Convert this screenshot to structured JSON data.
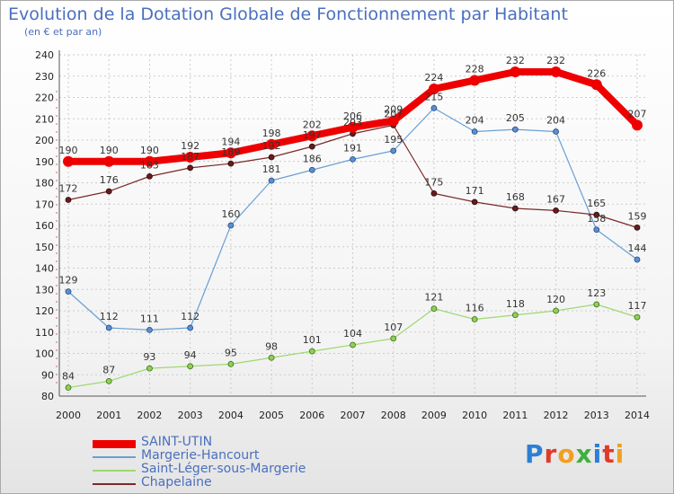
{
  "title": "Evolution de la Dotation Globale de Fonctionnement par Habitant",
  "subtitle": "(en € et par an)",
  "logo_text": "Proxiti",
  "chart_data": {
    "type": "line",
    "title": "Evolution de la Dotation Globale de Fonctionnement par Habitant",
    "subtitle": "(en € et par an)",
    "xlabel": "",
    "ylabel": "",
    "x": [
      "2000",
      "2001",
      "2002",
      "2003",
      "2004",
      "2005",
      "2006",
      "2007",
      "2008",
      "2009",
      "2010",
      "2011",
      "2012",
      "2013",
      "2014"
    ],
    "ylim": [
      80,
      240
    ],
    "yticks": [
      80,
      90,
      100,
      110,
      120,
      130,
      140,
      150,
      160,
      170,
      180,
      190,
      200,
      210,
      220,
      230,
      240
    ],
    "legend_position": "bottom-left",
    "series": [
      {
        "name": "SAINT-UTIN",
        "color": "#ee0000",
        "values": [
          190,
          190,
          190,
          192,
          194,
          198,
          202,
          206,
          209,
          224,
          228,
          232,
          232,
          226,
          207
        ]
      },
      {
        "name": "Margerie-Hancourt",
        "color": "#6a9fd4",
        "values": [
          129,
          112,
          111,
          112,
          160,
          181,
          186,
          191,
          195,
          215,
          204,
          205,
          204,
          158,
          144
        ]
      },
      {
        "name": "Saint-Léger-sous-Margerie",
        "color": "#a0d870",
        "values": [
          84,
          87,
          93,
          94,
          95,
          98,
          101,
          104,
          107,
          121,
          116,
          118,
          120,
          123,
          117
        ]
      },
      {
        "name": "Chapelaine",
        "color": "#7a2a2a",
        "values": [
          172,
          176,
          183,
          187,
          189,
          192,
          197,
          203,
          207,
          175,
          171,
          168,
          167,
          165,
          159
        ]
      }
    ]
  }
}
